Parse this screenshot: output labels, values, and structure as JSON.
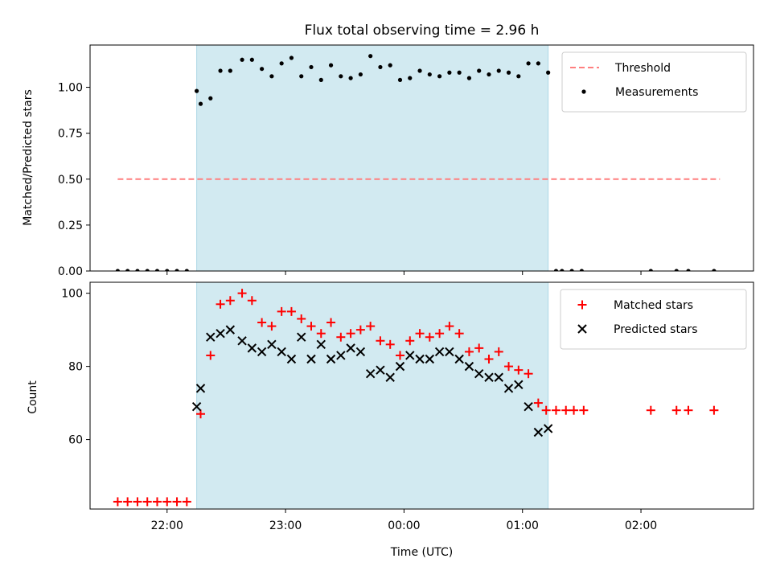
{
  "figure_title": "Flux total observing time = 2.96 h",
  "chart_data": [
    {
      "type": "scatter",
      "panel": "top",
      "ylabel": "Matched/Predicted stars",
      "xlabel": "",
      "ylim": [
        0,
        1.23
      ],
      "yticks": [
        0.0,
        0.25,
        0.5,
        0.75,
        1.0
      ],
      "ytick_labels": [
        "0.00",
        "0.25",
        "0.50",
        "0.75",
        "1.00"
      ],
      "xlim": [
        "21:21",
        "02:57"
      ],
      "xticks": [
        "22:00",
        "23:00",
        "00:00",
        "01:00",
        "02:00"
      ],
      "shaded_interval": [
        "22:15",
        "01:13"
      ],
      "shaded_color": "#add8e6",
      "threshold": {
        "name": "Threshold",
        "value": 0.5,
        "x_range": [
          "21:35",
          "02:40"
        ],
        "color": "#ff7f7f"
      },
      "series": [
        {
          "name": "Measurements",
          "color": "#000000",
          "x": [
            "21:35",
            "21:40",
            "21:45",
            "21:50",
            "21:55",
            "22:00",
            "22:05",
            "22:10",
            "22:15",
            "22:17",
            "22:22",
            "22:27",
            "22:32",
            "22:38",
            "22:43",
            "22:48",
            "22:53",
            "22:58",
            "23:03",
            "23:08",
            "23:13",
            "23:18",
            "23:23",
            "23:28",
            "23:33",
            "23:38",
            "23:43",
            "23:48",
            "23:53",
            "23:58",
            "00:03",
            "00:08",
            "00:13",
            "00:18",
            "00:23",
            "00:28",
            "00:33",
            "00:38",
            "00:43",
            "00:48",
            "00:53",
            "00:58",
            "01:03",
            "01:08",
            "01:13",
            "01:17",
            "01:20",
            "01:25",
            "01:30",
            "02:05",
            "02:18",
            "02:24",
            "02:37"
          ],
          "y": [
            0,
            0,
            0,
            0,
            0,
            0,
            0,
            0,
            0.98,
            0.91,
            0.94,
            1.09,
            1.09,
            1.15,
            1.15,
            1.1,
            1.06,
            1.13,
            1.16,
            1.06,
            1.11,
            1.04,
            1.12,
            1.06,
            1.05,
            1.07,
            1.17,
            1.11,
            1.12,
            1.04,
            1.05,
            1.09,
            1.07,
            1.06,
            1.08,
            1.08,
            1.05,
            1.09,
            1.07,
            1.09,
            1.08,
            1.06,
            1.13,
            1.13,
            1.08,
            0,
            0,
            0,
            0,
            0,
            0,
            0,
            0
          ]
        }
      ]
    },
    {
      "type": "scatter",
      "panel": "bottom",
      "ylabel": "Count",
      "xlabel": "Time (UTC)",
      "ylim": [
        41,
        103
      ],
      "yticks": [
        60,
        80,
        100
      ],
      "ytick_labels": [
        "60",
        "80",
        "100"
      ],
      "xlim": [
        "21:21",
        "02:57"
      ],
      "xticks": [
        "22:00",
        "23:00",
        "00:00",
        "01:00",
        "02:00"
      ],
      "shaded_interval": [
        "22:15",
        "01:13"
      ],
      "series": [
        {
          "name": "Matched stars",
          "marker": "plus",
          "color": "#ff0000",
          "x": [
            "21:35",
            "21:40",
            "21:45",
            "21:50",
            "21:55",
            "22:00",
            "22:05",
            "22:10",
            "22:17",
            "22:22",
            "22:27",
            "22:32",
            "22:38",
            "22:43",
            "22:48",
            "22:53",
            "22:58",
            "23:03",
            "23:08",
            "23:13",
            "23:18",
            "23:23",
            "23:28",
            "23:33",
            "23:38",
            "23:43",
            "23:48",
            "23:53",
            "23:58",
            "00:03",
            "00:08",
            "00:13",
            "00:18",
            "00:23",
            "00:28",
            "00:33",
            "00:38",
            "00:43",
            "00:48",
            "00:53",
            "00:58",
            "01:03",
            "01:08",
            "01:12",
            "01:17",
            "01:22",
            "01:26",
            "01:31",
            "02:05",
            "02:18",
            "02:24",
            "02:37"
          ],
          "y": [
            43,
            43,
            43,
            43,
            43,
            43,
            43,
            43,
            67,
            83,
            97,
            98,
            100,
            98,
            92,
            91,
            95,
            95,
            93,
            91,
            89,
            92,
            88,
            89,
            90,
            91,
            87,
            86,
            83,
            87,
            89,
            88,
            89,
            91,
            89,
            84,
            85,
            82,
            84,
            80,
            79,
            78,
            70,
            68,
            68,
            68,
            68,
            68,
            68,
            68,
            68,
            68
          ]
        },
        {
          "name": "Predicted stars",
          "marker": "x",
          "color": "#000000",
          "x": [
            "22:15",
            "22:17",
            "22:22",
            "22:27",
            "22:32",
            "22:38",
            "22:43",
            "22:48",
            "22:53",
            "22:58",
            "23:03",
            "23:08",
            "23:13",
            "23:18",
            "23:23",
            "23:28",
            "23:33",
            "23:38",
            "23:43",
            "23:48",
            "23:53",
            "23:58",
            "00:03",
            "00:08",
            "00:13",
            "00:18",
            "00:23",
            "00:28",
            "00:33",
            "00:38",
            "00:43",
            "00:48",
            "00:53",
            "00:58",
            "01:03",
            "01:08",
            "01:13"
          ],
          "y": [
            69,
            74,
            88,
            89,
            90,
            87,
            85,
            84,
            86,
            84,
            82,
            88,
            82,
            86,
            82,
            83,
            85,
            84,
            78,
            79,
            77,
            80,
            83,
            82,
            82,
            84,
            84,
            82,
            80,
            78,
            77,
            77,
            74,
            75,
            69,
            62,
            63
          ]
        }
      ],
      "legend_location": "top-right"
    }
  ]
}
